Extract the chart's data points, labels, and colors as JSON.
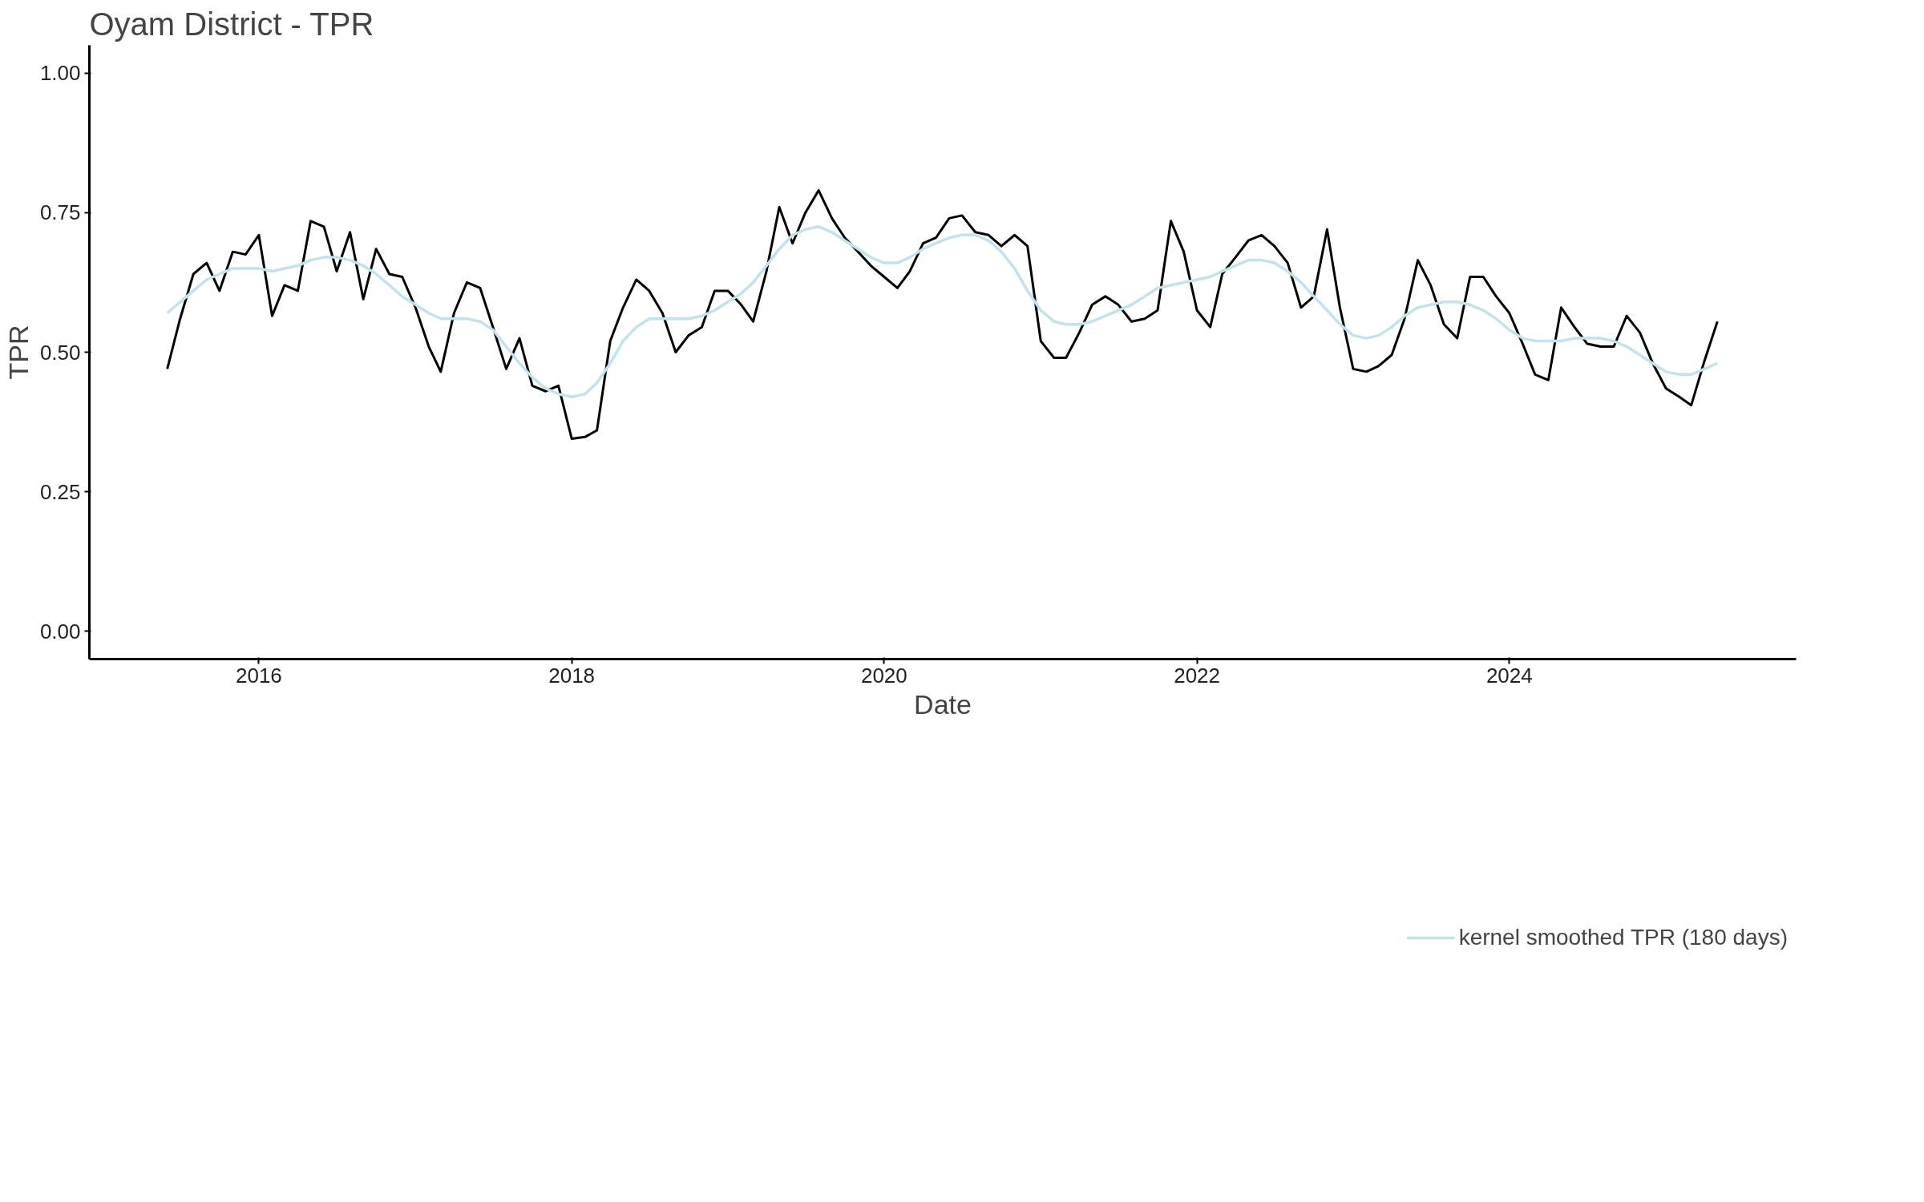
{
  "chart_data": {
    "type": "line",
    "title": "Oyam District - TPR",
    "xlabel": "Date",
    "ylabel": "TPR",
    "x": [
      "2015-06",
      "2015-07",
      "2015-08",
      "2015-09",
      "2015-10",
      "2015-11",
      "2015-12",
      "2016-01",
      "2016-02",
      "2016-03",
      "2016-04",
      "2016-05",
      "2016-06",
      "2016-07",
      "2016-08",
      "2016-09",
      "2016-10",
      "2016-11",
      "2016-12",
      "2017-01",
      "2017-02",
      "2017-03",
      "2017-04",
      "2017-05",
      "2017-06",
      "2017-07",
      "2017-08",
      "2017-09",
      "2017-10",
      "2017-11",
      "2017-12",
      "2018-01",
      "2018-02",
      "2018-03",
      "2018-04",
      "2018-05",
      "2018-06",
      "2018-07",
      "2018-08",
      "2018-09",
      "2018-10",
      "2018-11",
      "2018-12",
      "2019-01",
      "2019-02",
      "2019-03",
      "2019-04",
      "2019-05",
      "2019-06",
      "2019-07",
      "2019-08",
      "2019-09",
      "2019-10",
      "2019-11",
      "2019-12",
      "2020-01",
      "2020-02",
      "2020-03",
      "2020-04",
      "2020-05",
      "2020-06",
      "2020-07",
      "2020-08",
      "2020-09",
      "2020-10",
      "2020-11",
      "2020-12",
      "2021-01",
      "2021-02",
      "2021-03",
      "2021-04",
      "2021-05",
      "2021-06",
      "2021-07",
      "2021-08",
      "2021-09",
      "2021-10",
      "2021-11",
      "2021-12",
      "2022-01",
      "2022-02",
      "2022-03",
      "2022-04",
      "2022-05",
      "2022-06",
      "2022-07",
      "2022-08",
      "2022-09",
      "2022-10",
      "2022-11",
      "2022-12",
      "2023-01",
      "2023-02",
      "2023-03",
      "2023-04",
      "2023-05",
      "2023-06",
      "2023-07",
      "2023-08",
      "2023-09",
      "2023-10",
      "2023-11",
      "2023-12",
      "2024-01",
      "2024-02",
      "2024-03",
      "2024-04",
      "2024-05",
      "2024-06",
      "2024-07",
      "2024-08",
      "2024-09",
      "2024-10",
      "2024-11",
      "2024-12",
      "2025-01",
      "2025-02",
      "2025-03",
      "2025-04",
      "2025-05"
    ],
    "series": [
      {
        "color": "#000000",
        "values": [
          0.47,
          0.56,
          0.64,
          0.66,
          0.61,
          0.68,
          0.675,
          0.71,
          0.565,
          0.62,
          0.61,
          0.735,
          0.725,
          0.645,
          0.715,
          0.595,
          0.685,
          0.64,
          0.635,
          0.58,
          0.51,
          0.465,
          0.57,
          0.625,
          0.615,
          0.545,
          0.47,
          0.525,
          0.44,
          0.43,
          0.44,
          0.345,
          0.348,
          0.36,
          0.52,
          0.58,
          0.63,
          0.61,
          0.57,
          0.5,
          0.53,
          0.545,
          0.61,
          0.61,
          0.585,
          0.555,
          0.645,
          0.76,
          0.695,
          0.75,
          0.79,
          0.74,
          0.705,
          0.68,
          0.655,
          0.635,
          0.615,
          0.645,
          0.695,
          0.705,
          0.74,
          0.745,
          0.715,
          0.71,
          0.69,
          0.71,
          0.69,
          0.52,
          0.49,
          0.49,
          0.535,
          0.585,
          0.6,
          0.585,
          0.555,
          0.56,
          0.575,
          0.735,
          0.68,
          0.575,
          0.545,
          0.64,
          0.67,
          0.7,
          0.71,
          0.69,
          0.66,
          0.58,
          0.6,
          0.72,
          0.58,
          0.47,
          0.465,
          0.475,
          0.495,
          0.56,
          0.665,
          0.62,
          0.55,
          0.525,
          0.635,
          0.635,
          0.6,
          0.57,
          0.515,
          0.46,
          0.45,
          0.58,
          0.545,
          0.515,
          0.51,
          0.51,
          0.565,
          0.535,
          0.48,
          0.435,
          0.42,
          0.405,
          0.485,
          0.555
        ]
      },
      {
        "name": "kernel smoothed TPR (180 days)",
        "color": "#c3e2ec",
        "values": [
          0.57,
          0.59,
          0.61,
          0.63,
          0.64,
          0.65,
          0.65,
          0.65,
          0.645,
          0.65,
          0.655,
          0.665,
          0.67,
          0.67,
          0.665,
          0.655,
          0.64,
          0.62,
          0.6,
          0.585,
          0.57,
          0.56,
          0.56,
          0.56,
          0.555,
          0.54,
          0.51,
          0.48,
          0.455,
          0.435,
          0.425,
          0.42,
          0.425,
          0.445,
          0.48,
          0.52,
          0.545,
          0.56,
          0.56,
          0.56,
          0.56,
          0.565,
          0.575,
          0.59,
          0.605,
          0.625,
          0.655,
          0.685,
          0.71,
          0.72,
          0.725,
          0.715,
          0.7,
          0.685,
          0.67,
          0.66,
          0.66,
          0.67,
          0.685,
          0.695,
          0.705,
          0.71,
          0.71,
          0.7,
          0.68,
          0.65,
          0.61,
          0.575,
          0.555,
          0.55,
          0.55,
          0.555,
          0.565,
          0.575,
          0.585,
          0.6,
          0.615,
          0.62,
          0.625,
          0.63,
          0.635,
          0.645,
          0.655,
          0.665,
          0.665,
          0.66,
          0.645,
          0.625,
          0.6,
          0.575,
          0.55,
          0.53,
          0.525,
          0.53,
          0.545,
          0.565,
          0.58,
          0.585,
          0.59,
          0.59,
          0.585,
          0.575,
          0.56,
          0.54,
          0.525,
          0.52,
          0.52,
          0.52,
          0.525,
          0.525,
          0.525,
          0.52,
          0.51,
          0.495,
          0.48,
          0.465,
          0.46,
          0.46,
          0.47,
          0.48
        ]
      }
    ],
    "xlim": [
      "2014-12",
      "2025-11"
    ],
    "xticks": [
      "2016",
      "2018",
      "2020",
      "2022",
      "2024"
    ],
    "ylim": [
      -0.05,
      1.05
    ],
    "yticks": [
      {
        "value": 0,
        "label": "0.00"
      },
      {
        "value": 0.25,
        "label": "0.25"
      },
      {
        "value": 0.5,
        "label": "0.50"
      },
      {
        "value": 0.75,
        "label": "0.75"
      },
      {
        "value": 1,
        "label": "1.00"
      }
    ],
    "grid": false,
    "legend": "bottom",
    "line_style": "solid",
    "marker": "none"
  }
}
